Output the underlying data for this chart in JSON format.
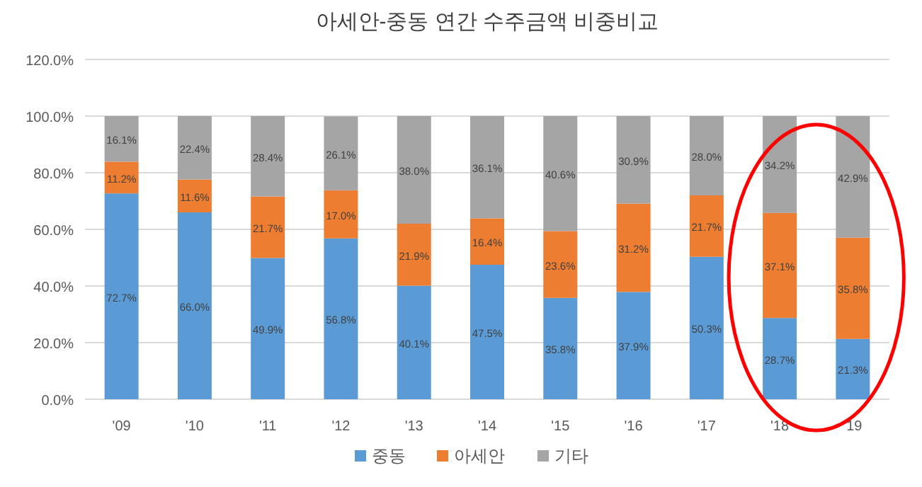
{
  "chart_data": {
    "type": "bar",
    "title": "아세안-중동 연간 수주금액 비중비교",
    "stacked": true,
    "legend": "bottom",
    "grid": "y",
    "categories": [
      "'09",
      "'10",
      "'11",
      "'12",
      "'13",
      "'14",
      "'15",
      "'16",
      "'17",
      "'18",
      "'19"
    ],
    "ylim": [
      0,
      120
    ],
    "yticks": [
      {
        "value": 0,
        "label": "0.0%"
      },
      {
        "value": 20,
        "label": "20.0%"
      },
      {
        "value": 40,
        "label": "40.0%"
      },
      {
        "value": 60,
        "label": "60.0%"
      },
      {
        "value": 80,
        "label": "80.0%"
      },
      {
        "value": 100,
        "label": "100.0%"
      },
      {
        "value": 120,
        "label": "120.0%"
      }
    ],
    "series": [
      {
        "name": "중동",
        "color": "#5b9bd5",
        "values": [
          72.7,
          66.0,
          49.9,
          56.8,
          40.1,
          47.5,
          35.8,
          37.9,
          50.3,
          28.7,
          21.3
        ],
        "value_labels": [
          "72.7%",
          "66.0%",
          "49.9%",
          "56.8%",
          "40.1%",
          "47.5%",
          "35.8%",
          "37.9%",
          "50.3%",
          "28.7%",
          "21.3%"
        ]
      },
      {
        "name": "아세안",
        "color": "#ed7d31",
        "values": [
          11.2,
          11.6,
          21.7,
          17.0,
          21.9,
          16.4,
          23.6,
          31.2,
          21.7,
          37.1,
          35.8
        ],
        "value_labels": [
          "11.2%",
          "11.6%",
          "21.7%",
          "17.0%",
          "21.9%",
          "16.4%",
          "23.6%",
          "31.2%",
          "21.7%",
          "37.1%",
          "35.8%"
        ]
      },
      {
        "name": "기타",
        "color": "#a5a5a5",
        "values": [
          16.1,
          22.4,
          28.4,
          26.1,
          38.0,
          36.1,
          40.6,
          30.9,
          28.0,
          34.2,
          42.9
        ],
        "value_labels": [
          "16.1%",
          "22.4%",
          "28.4%",
          "26.1%",
          "38.0%",
          "36.1%",
          "40.6%",
          "30.9%",
          "28.0%",
          "34.2%",
          "42.9%"
        ]
      }
    ]
  }
}
